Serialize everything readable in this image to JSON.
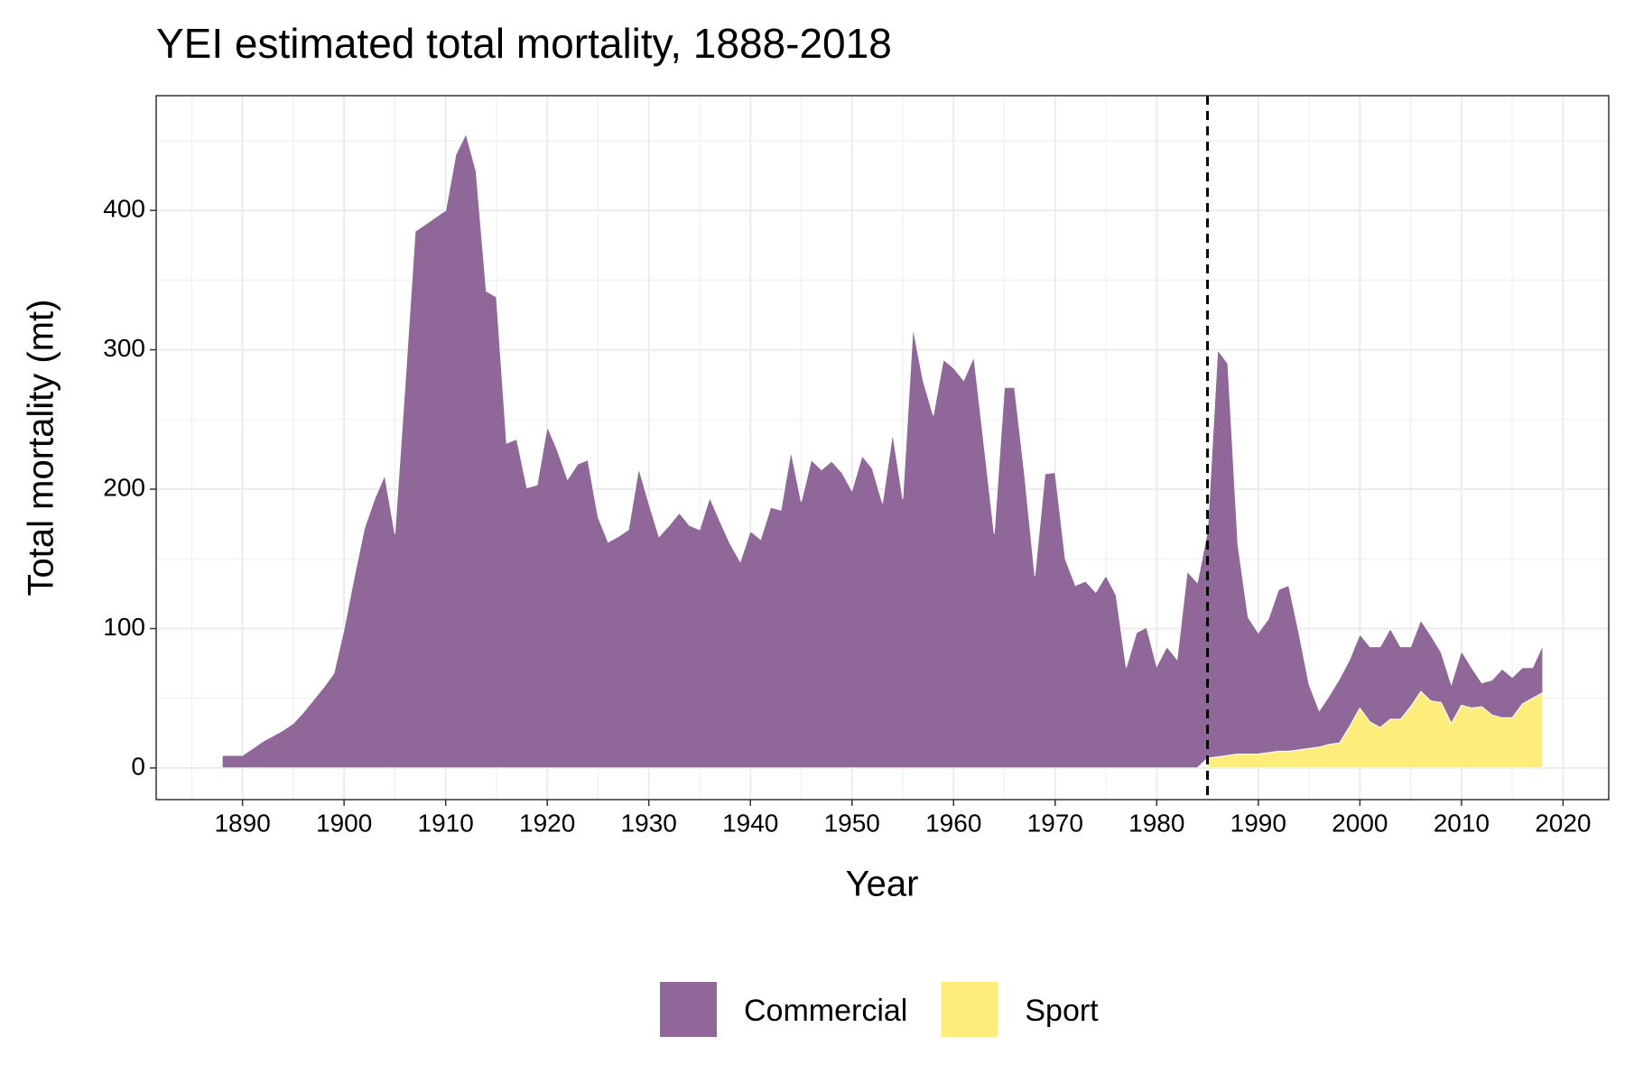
{
  "chart_data": {
    "type": "stacked_area",
    "title": "YEI estimated total mortality, 1888-2018",
    "x_label": "Year",
    "y_label": "Total mortality (mt)",
    "x": [
      1888,
      1889,
      1890,
      1891,
      1892,
      1893,
      1894,
      1895,
      1896,
      1897,
      1898,
      1899,
      1900,
      1901,
      1902,
      1903,
      1904,
      1905,
      1906,
      1907,
      1908,
      1909,
      1910,
      1911,
      1912,
      1913,
      1914,
      1915,
      1916,
      1917,
      1918,
      1919,
      1920,
      1921,
      1922,
      1923,
      1924,
      1925,
      1926,
      1927,
      1928,
      1929,
      1930,
      1931,
      1932,
      1933,
      1934,
      1935,
      1936,
      1937,
      1938,
      1939,
      1940,
      1941,
      1942,
      1943,
      1944,
      1945,
      1946,
      1947,
      1948,
      1949,
      1950,
      1951,
      1952,
      1953,
      1954,
      1955,
      1956,
      1957,
      1958,
      1959,
      1960,
      1961,
      1962,
      1963,
      1964,
      1965,
      1966,
      1967,
      1968,
      1969,
      1970,
      1971,
      1972,
      1973,
      1974,
      1975,
      1976,
      1977,
      1978,
      1979,
      1980,
      1981,
      1982,
      1983,
      1984,
      1985,
      1986,
      1987,
      1988,
      1989,
      1990,
      1991,
      1992,
      1993,
      1994,
      1995,
      1996,
      1997,
      1998,
      1999,
      2000,
      2001,
      2002,
      2003,
      2004,
      2005,
      2006,
      2007,
      2008,
      2009,
      2010,
      2011,
      2012,
      2013,
      2014,
      2015,
      2016,
      2017,
      2018
    ],
    "series": [
      {
        "name": "Commercial",
        "color": "#8f6799",
        "values": [
          9,
          9,
          9,
          14,
          19,
          23,
          27,
          32,
          40,
          49,
          58,
          68,
          100,
          137,
          172,
          193,
          210,
          168,
          275,
          385,
          390,
          395,
          400,
          440,
          455,
          428,
          342,
          338,
          233,
          236,
          201,
          203,
          245,
          228,
          207,
          218,
          221,
          180,
          162,
          166,
          171,
          215,
          190,
          166,
          174,
          183,
          174,
          171,
          194,
          177,
          161,
          148,
          170,
          164,
          187,
          185,
          227,
          191,
          221,
          214,
          220,
          212,
          199,
          224,
          215,
          190,
          240,
          193,
          316,
          278,
          253,
          293,
          287,
          278,
          295,
          232,
          168,
          273,
          273,
          210,
          138,
          211,
          212,
          150,
          131,
          134,
          126,
          138,
          124,
          72,
          97,
          101,
          73,
          87,
          78,
          141,
          133,
          163,
          292,
          281,
          150,
          98,
          87,
          96,
          116,
          119,
          84,
          46,
          26,
          35,
          46,
          48,
          53,
          54,
          58,
          65,
          52,
          43,
          51,
          47,
          36,
          28,
          39,
          29,
          17,
          25,
          35,
          29,
          26,
          22,
          34
        ]
      },
      {
        "name": "Sport",
        "color": "#fdee7c",
        "values": [
          null,
          null,
          null,
          null,
          null,
          null,
          null,
          null,
          null,
          null,
          null,
          null,
          null,
          null,
          null,
          null,
          null,
          null,
          null,
          null,
          null,
          null,
          null,
          null,
          null,
          null,
          null,
          null,
          null,
          null,
          null,
          null,
          null,
          null,
          null,
          null,
          null,
          null,
          null,
          null,
          null,
          null,
          null,
          null,
          null,
          null,
          null,
          null,
          null,
          null,
          null,
          null,
          null,
          null,
          null,
          null,
          null,
          null,
          null,
          null,
          null,
          null,
          null,
          null,
          null,
          null,
          null,
          null,
          null,
          null,
          null,
          null,
          null,
          null,
          null,
          null,
          null,
          null,
          null,
          null,
          null,
          null,
          null,
          null,
          null,
          null,
          null,
          null,
          null,
          null,
          null,
          null,
          null,
          null,
          null,
          null,
          null,
          7,
          8,
          9,
          10,
          10,
          10,
          11,
          12,
          12,
          13,
          14,
          15,
          17,
          18,
          30,
          43,
          33,
          29,
          35,
          35,
          44,
          55,
          48,
          47,
          32,
          45,
          43,
          44,
          38,
          36,
          36,
          46,
          50,
          54
        ]
      }
    ],
    "vline": 1985,
    "xlim": [
      1881.5,
      2024.5
    ],
    "xticks": [
      1890,
      1900,
      1910,
      1920,
      1930,
      1940,
      1950,
      1960,
      1970,
      1980,
      1990,
      2000,
      2010,
      2020
    ],
    "ylim": [
      -22.7,
      482.3
    ],
    "yticks": [
      0,
      100,
      200,
      300,
      400
    ],
    "grid": true,
    "legend": "bottom"
  }
}
